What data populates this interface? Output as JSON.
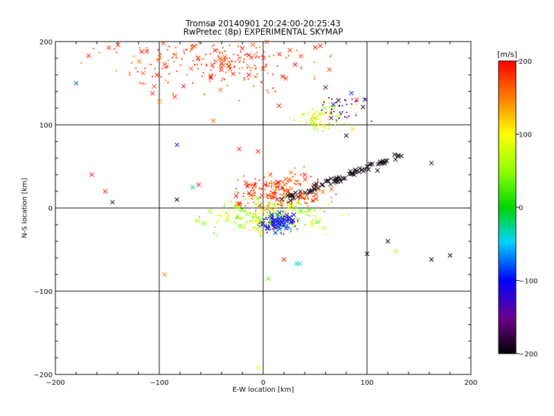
{
  "chart_data": {
    "type": "scatter",
    "title": "Tromsø 20140901 20:24:00-20:25:43",
    "subtitle": "RwPretec (8p) EXPERIMENTAL SKYMAP",
    "xlabel": "E-W location [km]",
    "ylabel": "N-S location [km]",
    "xlim": [
      -200,
      200
    ],
    "ylim": [
      -200,
      200
    ],
    "xticks": [
      -200,
      -100,
      0,
      100,
      200
    ],
    "yticks": [
      -200,
      -100,
      0,
      100,
      200
    ],
    "grid": true,
    "colorbar": {
      "label": "[m/s]",
      "range": [
        -200,
        200
      ],
      "ticks": [
        200,
        100,
        0,
        -100,
        -200
      ],
      "colormap": "rainbow (black-purple-blue-cyan-green-yellow-red)"
    },
    "clusters": [
      {
        "cx": -45,
        "cy": 175,
        "sx": 45,
        "sy": 18,
        "count": 260,
        "v": [
          150,
          200
        ]
      },
      {
        "cx": 55,
        "cy": 110,
        "sx": 14,
        "sy": 10,
        "count": 70,
        "v": [
          40,
          120
        ]
      },
      {
        "cx": 75,
        "cy": 120,
        "sx": 12,
        "sy": 8,
        "count": 40,
        "v": [
          -200,
          -120
        ]
      },
      {
        "cx": 20,
        "cy": 20,
        "sx": 22,
        "sy": 10,
        "count": 220,
        "v": [
          150,
          200
        ]
      },
      {
        "cx": 5,
        "cy": -10,
        "sx": 28,
        "sy": 10,
        "count": 220,
        "v": [
          20,
          110
        ]
      },
      {
        "cx": 15,
        "cy": -18,
        "sx": 8,
        "sy": 6,
        "count": 150,
        "v": [
          -140,
          -60
        ]
      }
    ],
    "trail": {
      "from": [
        20,
        10
      ],
      "to": [
        135,
        65
      ],
      "count": 70,
      "v": [
        -200,
        -190
      ]
    },
    "outliers": [
      {
        "x": -180,
        "y": 150,
        "v": -80
      },
      {
        "x": -168,
        "y": 183,
        "v": 190
      },
      {
        "x": -145,
        "y": 7,
        "v": -180
      },
      {
        "x": -117,
        "y": 188,
        "v": 195
      },
      {
        "x": -112,
        "y": 188,
        "v": 185
      },
      {
        "x": -100,
        "y": 128,
        "v": 140
      },
      {
        "x": -83,
        "y": 76,
        "v": -110
      },
      {
        "x": -83,
        "y": 10,
        "v": -200
      },
      {
        "x": -68,
        "y": 25,
        "v": -20
      },
      {
        "x": -62,
        "y": 28,
        "v": 190
      },
      {
        "x": -48,
        "y": 105,
        "v": 160
      },
      {
        "x": -23,
        "y": 71,
        "v": 195
      },
      {
        "x": -5,
        "y": 68,
        "v": 190
      },
      {
        "x": 35,
        "y": -67,
        "v": -40
      },
      {
        "x": 32,
        "y": -67,
        "v": -30
      },
      {
        "x": 20,
        "y": -62,
        "v": 190
      },
      {
        "x": 5,
        "y": -85,
        "v": 30
      },
      {
        "x": 40,
        "y": 40,
        "v": 190
      },
      {
        "x": 60,
        "y": 145,
        "v": -160
      },
      {
        "x": 80,
        "y": 87,
        "v": -200
      },
      {
        "x": 85,
        "y": 138,
        "v": -90
      },
      {
        "x": 90,
        "y": 130,
        "v": 190
      },
      {
        "x": 55,
        "y": 195,
        "v": 190
      },
      {
        "x": 100,
        "y": 50,
        "v": -200
      },
      {
        "x": 110,
        "y": 45,
        "v": -200
      },
      {
        "x": 162,
        "y": 54,
        "v": -200
      },
      {
        "x": 162,
        "y": -62,
        "v": -200
      },
      {
        "x": 180,
        "y": -57,
        "v": -200
      },
      {
        "x": 128,
        "y": -52,
        "v": 60
      },
      {
        "x": 120,
        "y": -40,
        "v": -200
      },
      {
        "x": 100,
        "y": -55,
        "v": -200
      },
      {
        "x": -20,
        "y": 192,
        "v": 190
      },
      {
        "x": -5,
        "y": -192,
        "v": 80
      },
      {
        "x": -95,
        "y": -80,
        "v": 150
      },
      {
        "x": -165,
        "y": 40,
        "v": 190
      },
      {
        "x": -152,
        "y": 20,
        "v": 190
      }
    ]
  }
}
